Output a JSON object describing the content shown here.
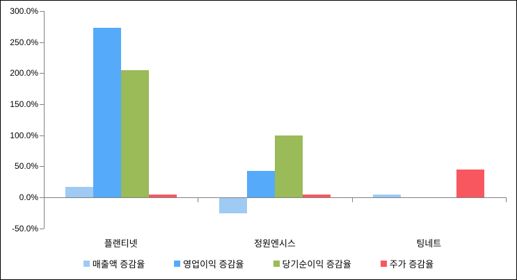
{
  "chart_data": {
    "type": "bar",
    "title": "",
    "xlabel": "",
    "ylabel": "",
    "categories": [
      "플랜티넷",
      "정원엔시스",
      "팅네트"
    ],
    "series": [
      {
        "name": "매출액 증감율",
        "color": "#9ECAF4",
        "values": [
          17,
          -25,
          5
        ]
      },
      {
        "name": "영업이익 증감율",
        "color": "#55AAFA",
        "values": [
          273,
          43,
          0
        ]
      },
      {
        "name": "당기순이익 증감율",
        "color": "#9ABB57",
        "values": [
          205,
          100,
          0
        ]
      },
      {
        "name": "주가 증감율",
        "color": "#F9575F",
        "values": [
          4,
          5,
          45
        ]
      }
    ],
    "ylim": [
      -50,
      300
    ],
    "yticks": [
      {
        "value": 300,
        "label": "300.0%"
      },
      {
        "value": 250,
        "label": "250.0%"
      },
      {
        "value": 200,
        "label": "200.0%"
      },
      {
        "value": 150,
        "label": "150.0%"
      },
      {
        "value": 100,
        "label": "100.0%"
      },
      {
        "value": 50,
        "label": "50.0%"
      },
      {
        "value": 0,
        "label": "0.0%"
      },
      {
        "value": -50,
        "label": "-50.0%"
      }
    ],
    "grid": false,
    "legend_position": "bottom",
    "axis_color": "#808080",
    "text_color": "#000000",
    "background_color": "#ffffff"
  }
}
